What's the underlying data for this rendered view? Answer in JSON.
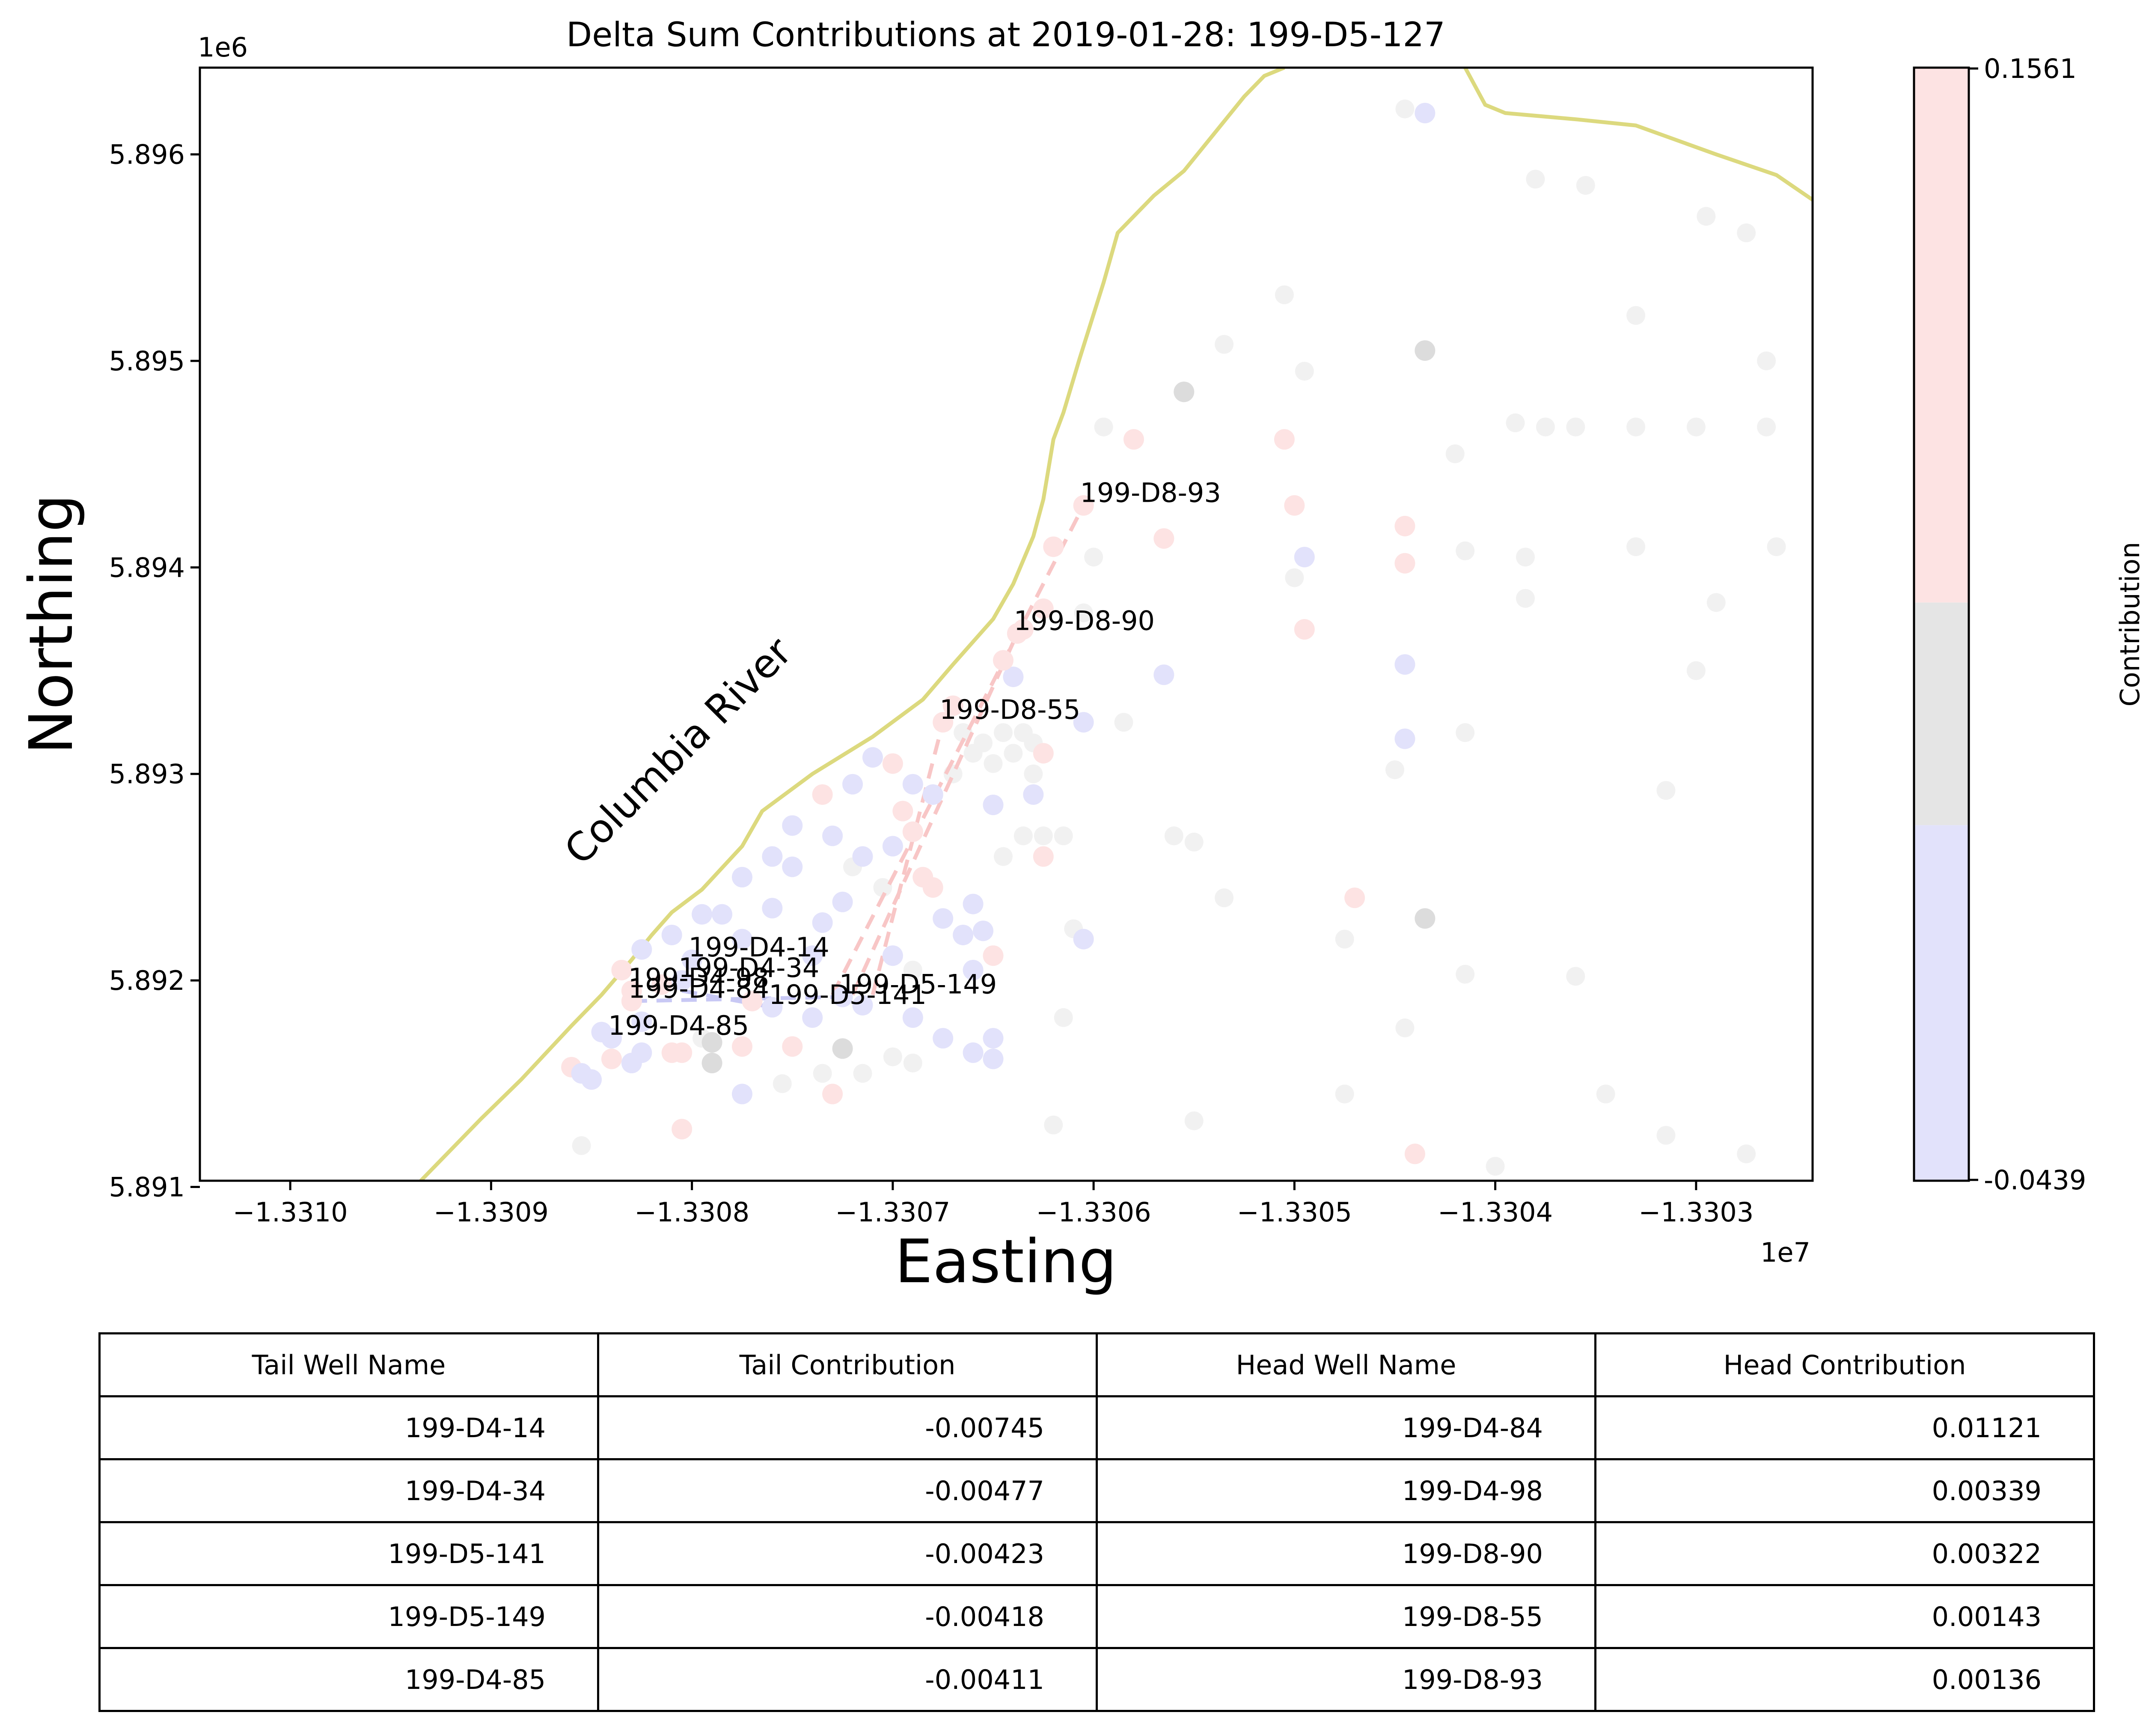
{
  "chart_data": {
    "type": "scatter",
    "title": "Delta Sum Contributions at 2019-01-28: 199-D5-127",
    "xlabel": "Easting",
    "ylabel": "Northing",
    "x_offset_text": "1e7",
    "y_offset_text": "1e6",
    "xlim": [
      -13310.45,
      -13302.42
    ],
    "ylim": [
      5891.03,
      5896.42
    ],
    "x_ticks": [
      -13310,
      -13309,
      -13308,
      -13307,
      -13306,
      -13305,
      -13304,
      -13303
    ],
    "x_tick_labels": [
      "−1.3310",
      "−1.3309",
      "−1.3308",
      "−1.3307",
      "−1.3306",
      "−1.3305",
      "−1.3304",
      "−1.3303"
    ],
    "y_ticks": [
      5891,
      5892,
      5893,
      5894,
      5895,
      5896
    ],
    "y_tick_labels": [
      "5.891",
      "5.892",
      "5.893",
      "5.894",
      "5.895",
      "5.896"
    ],
    "river_label": "Columbia River",
    "river_color": "#dcd97e",
    "river": [
      [
        -13309.35,
        5891.03
      ],
      [
        -13309.05,
        5891.33
      ],
      [
        -13308.85,
        5891.52
      ],
      [
        -13308.6,
        5891.78
      ],
      [
        -13308.45,
        5891.93
      ],
      [
        -13308.3,
        5892.1
      ],
      [
        -13308.2,
        5892.22
      ],
      [
        -13308.1,
        5892.33
      ],
      [
        -13307.95,
        5892.44
      ],
      [
        -13307.75,
        5892.65
      ],
      [
        -13307.65,
        5892.82
      ],
      [
        -13307.4,
        5893.0
      ],
      [
        -13307.1,
        5893.18
      ],
      [
        -13306.85,
        5893.36
      ],
      [
        -13306.7,
        5893.53
      ],
      [
        -13306.5,
        5893.75
      ],
      [
        -13306.4,
        5893.92
      ],
      [
        -13306.3,
        5894.15
      ],
      [
        -13306.25,
        5894.33
      ],
      [
        -13306.2,
        5894.62
      ],
      [
        -13306.15,
        5894.75
      ],
      [
        -13306.07,
        5895.01
      ],
      [
        -13305.95,
        5895.38
      ],
      [
        -13305.88,
        5895.62
      ],
      [
        -13305.7,
        5895.8
      ],
      [
        -13305.55,
        5895.92
      ],
      [
        -13305.4,
        5896.1
      ],
      [
        -13305.25,
        5896.28
      ],
      [
        -13305.15,
        5896.38
      ],
      [
        -13305.05,
        5896.42
      ]
    ],
    "river2": [
      [
        -13304.15,
        5896.42
      ],
      [
        -13304.05,
        5896.24
      ],
      [
        -13303.95,
        5896.2
      ],
      [
        -13303.6,
        5896.17
      ],
      [
        -13303.3,
        5896.14
      ],
      [
        -13302.9,
        5896.0
      ],
      [
        -13302.6,
        5895.9
      ],
      [
        -13302.42,
        5895.78
      ]
    ],
    "colorbar": {
      "label": "Contribution",
      "min": -0.0439,
      "max": 0.1561,
      "min_label": "-0.0439",
      "max_label": "0.1561",
      "colors": {
        "negative": "#e2e2fb",
        "neutral": "#e5e5e5",
        "positive": "#fde3e3"
      }
    },
    "wells": [
      {
        "name": "199-D8-93",
        "x": -13306.05,
        "y": 5894.3,
        "c": 0.0014
      },
      {
        "name": "199-D8-90",
        "x": -13306.38,
        "y": 5893.68,
        "c": 0.0032
      },
      {
        "name": "199-D8-55",
        "x": -13306.75,
        "y": 5893.25,
        "c": 0.0014
      },
      {
        "name": "199-D4-14",
        "x": -13308.0,
        "y": 5892.1,
        "c": -0.0075
      },
      {
        "name": "199-D4-34",
        "x": -13308.05,
        "y": 5892.0,
        "c": -0.0048
      },
      {
        "name": "199-D4-98",
        "x": -13308.3,
        "y": 5891.95,
        "c": 0.0034
      },
      {
        "name": "199-D4-84",
        "x": -13308.3,
        "y": 5891.9,
        "c": 0.0112
      },
      {
        "name": "199-D4-85",
        "x": -13308.4,
        "y": 5891.72,
        "c": -0.0041
      },
      {
        "name": "199-D5-141",
        "x": -13307.6,
        "y": 5891.87,
        "c": -0.0042
      },
      {
        "name": "199-D5-149",
        "x": -13307.25,
        "y": 5891.92,
        "c": -0.0042
      }
    ],
    "points": [
      [
        -13308.6,
        5891.58,
        1
      ],
      [
        -13308.5,
        5891.52,
        -1
      ],
      [
        -13308.4,
        5891.62,
        1
      ],
      [
        -13308.3,
        5891.6,
        -1
      ],
      [
        -13308.25,
        5891.8,
        -1
      ],
      [
        -13308.1,
        5891.65,
        1
      ],
      [
        -13308.05,
        5891.65,
        1
      ],
      [
        -13307.9,
        5891.7,
        0
      ],
      [
        -13307.9,
        5891.6,
        0
      ],
      [
        -13307.75,
        5891.45,
        -1
      ],
      [
        -13307.75,
        5891.68,
        1
      ],
      [
        -13307.5,
        5891.68,
        1
      ],
      [
        -13307.3,
        5891.45,
        1
      ],
      [
        -13307.25,
        5891.67,
        0
      ],
      [
        -13307.4,
        5891.82,
        -1
      ],
      [
        -13307.15,
        5891.88,
        -1
      ],
      [
        -13307.0,
        5892.12,
        -1
      ],
      [
        -13306.9,
        5891.82,
        -1
      ],
      [
        -13306.75,
        5891.72,
        -1
      ],
      [
        -13306.6,
        5891.65,
        -1
      ],
      [
        -13306.5,
        5891.72,
        -1
      ],
      [
        -13306.6,
        5892.05,
        -1
      ],
      [
        -13306.5,
        5892.12,
        1
      ],
      [
        -13306.65,
        5892.22,
        -1
      ],
      [
        -13306.75,
        5892.3,
        -1
      ],
      [
        -13306.6,
        5892.37,
        -1
      ],
      [
        -13306.8,
        5892.45,
        1
      ],
      [
        -13306.85,
        5892.5,
        1
      ],
      [
        -13306.9,
        5892.72,
        1
      ],
      [
        -13306.95,
        5892.82,
        1
      ],
      [
        -13306.9,
        5892.95,
        -1
      ],
      [
        -13306.8,
        5892.9,
        -1
      ],
      [
        -13306.5,
        5892.85,
        -1
      ],
      [
        -13306.3,
        5892.9,
        -1
      ],
      [
        -13306.25,
        5893.1,
        1
      ],
      [
        -13306.05,
        5893.25,
        -1
      ],
      [
        -13306.25,
        5892.6,
        1
      ],
      [
        -13306.05,
        5892.2,
        -1
      ],
      [
        -13307.0,
        5893.05,
        1
      ],
      [
        -13307.1,
        5893.08,
        -1
      ],
      [
        -13307.2,
        5892.95,
        -1
      ],
      [
        -13307.3,
        5892.7,
        -1
      ],
      [
        -13307.15,
        5892.6,
        -1
      ],
      [
        -13307.0,
        5892.65,
        -1
      ],
      [
        -13307.35,
        5892.9,
        1
      ],
      [
        -13307.5,
        5892.75,
        -1
      ],
      [
        -13307.6,
        5892.6,
        -1
      ],
      [
        -13307.75,
        5892.5,
        -1
      ],
      [
        -13307.6,
        5892.35,
        -1
      ],
      [
        -13307.35,
        5892.28,
        -1
      ],
      [
        -13307.25,
        5892.38,
        -1
      ],
      [
        -13307.4,
        5892.12,
        -1
      ],
      [
        -13307.75,
        5892.2,
        -1
      ],
      [
        -13307.85,
        5892.32,
        -1
      ],
      [
        -13307.95,
        5892.32,
        -1
      ],
      [
        -13308.1,
        5892.22,
        -1
      ],
      [
        -13308.25,
        5892.15,
        -1
      ],
      [
        -13308.35,
        5892.05,
        1
      ],
      [
        -13308.15,
        5891.98,
        1
      ],
      [
        -13308.45,
        5891.75,
        -1
      ],
      [
        -13308.55,
        5891.55,
        -1
      ],
      [
        -13308.25,
        5891.65,
        -1
      ],
      [
        -13307.5,
        5892.55,
        -1
      ],
      [
        -13306.7,
        5893.33,
        1
      ],
      [
        -13306.4,
        5893.47,
        -1
      ],
      [
        -13306.45,
        5893.55,
        1
      ],
      [
        -13306.35,
        5893.7,
        1
      ],
      [
        -13306.25,
        5893.8,
        1
      ],
      [
        -13306.2,
        5894.1,
        1
      ],
      [
        -13305.8,
        5894.62,
        1
      ],
      [
        -13305.65,
        5894.14,
        1
      ],
      [
        -13305.65,
        5893.48,
        -1
      ],
      [
        -13305.55,
        5894.85,
        0
      ],
      [
        -13305.05,
        5894.62,
        1
      ],
      [
        -13305.0,
        5894.3,
        1
      ],
      [
        -13304.95,
        5894.05,
        -1
      ],
      [
        -13304.95,
        5893.7,
        1
      ],
      [
        -13304.45,
        5894.2,
        1
      ],
      [
        -13304.45,
        5894.02,
        1
      ],
      [
        -13304.45,
        5893.53,
        -1
      ],
      [
        -13304.45,
        5893.17,
        -1
      ],
      [
        -13304.35,
        5895.05,
        0
      ],
      [
        -13304.35,
        5896.2,
        -1
      ],
      [
        -13304.35,
        5892.3,
        0
      ],
      [
        -13304.7,
        5892.4,
        1
      ],
      [
        -13304.4,
        5891.16,
        1
      ],
      [
        -13308.05,
        5891.28,
        1
      ],
      [
        -13307.7,
        5891.9,
        1
      ],
      [
        -13306.5,
        5891.62,
        -1
      ],
      [
        -13306.55,
        5892.24,
        -1
      ]
    ],
    "ghosts": [
      [
        -13306.3,
        5893.15
      ],
      [
        -13306.35,
        5893.2
      ],
      [
        -13306.45,
        5893.2
      ],
      [
        -13306.55,
        5893.15
      ],
      [
        -13306.6,
        5893.1
      ],
      [
        -13306.65,
        5893.2
      ],
      [
        -13306.5,
        5893.05
      ],
      [
        -13306.4,
        5893.1
      ],
      [
        -13306.3,
        5893.0
      ],
      [
        -13306.7,
        5893.0
      ],
      [
        -13306.35,
        5892.7
      ],
      [
        -13306.25,
        5892.7
      ],
      [
        -13306.15,
        5892.7
      ],
      [
        -13306.0,
        5894.05
      ],
      [
        -13306.05,
        5893.78
      ],
      [
        -13305.85,
        5893.25
      ],
      [
        -13305.5,
        5892.67
      ],
      [
        -13305.35,
        5892.4
      ],
      [
        -13305.05,
        5895.32
      ],
      [
        -13305.0,
        5893.95
      ],
      [
        -13304.95,
        5894.95
      ],
      [
        -13304.75,
        5892.2
      ],
      [
        -13304.75,
        5891.45
      ],
      [
        -13304.45,
        5891.77
      ],
      [
        -13304.45,
        5896.22
      ],
      [
        -13304.15,
        5894.08
      ],
      [
        -13304.15,
        5893.2
      ],
      [
        -13304.15,
        5892.03
      ],
      [
        -13304.0,
        5891.1
      ],
      [
        -13303.9,
        5894.7
      ],
      [
        -13303.85,
        5894.05
      ],
      [
        -13303.85,
        5893.85
      ],
      [
        -13303.8,
        5895.88
      ],
      [
        -13303.75,
        5894.68
      ],
      [
        -13303.6,
        5894.68
      ],
      [
        -13303.55,
        5895.85
      ],
      [
        -13303.3,
        5895.22
      ],
      [
        -13303.3,
        5894.68
      ],
      [
        -13303.3,
        5894.1
      ],
      [
        -13303.15,
        5892.92
      ],
      [
        -13303.15,
        5891.25
      ],
      [
        -13303.0,
        5894.68
      ],
      [
        -13303.0,
        5893.5
      ],
      [
        -13302.95,
        5895.7
      ],
      [
        -13302.9,
        5893.83
      ],
      [
        -13302.75,
        5895.62
      ],
      [
        -13302.75,
        5891.16
      ],
      [
        -13302.65,
        5894.68
      ],
      [
        -13302.65,
        5895.0
      ],
      [
        -13302.6,
        5894.1
      ],
      [
        -13305.35,
        5895.08
      ],
      [
        -13305.5,
        5891.32
      ],
      [
        -13306.2,
        5891.3
      ],
      [
        -13306.15,
        5891.82
      ],
      [
        -13306.9,
        5891.6
      ],
      [
        -13307.0,
        5891.63
      ],
      [
        -13307.15,
        5891.55
      ],
      [
        -13307.55,
        5891.5
      ],
      [
        -13307.35,
        5891.55
      ],
      [
        -13308.55,
        5891.2
      ],
      [
        -13307.95,
        5891.72
      ],
      [
        -13306.9,
        5892.05
      ],
      [
        -13307.05,
        5892.45
      ],
      [
        -13307.2,
        5892.55
      ],
      [
        -13306.45,
        5892.6
      ],
      [
        -13305.95,
        5894.68
      ],
      [
        -13306.1,
        5892.25
      ],
      [
        -13304.5,
        5893.02
      ],
      [
        -13303.45,
        5891.45
      ],
      [
        -13303.6,
        5892.02
      ],
      [
        -13305.6,
        5892.7
      ],
      [
        -13304.2,
        5894.55
      ]
    ],
    "arrows_red": [
      [
        [
          -13307.3,
          5891.93
        ],
        [
          -13306.05,
          5894.3
        ]
      ],
      [
        [
          -13307.2,
          5891.93
        ],
        [
          -13306.38,
          5893.68
        ]
      ],
      [
        [
          -13307.1,
          5891.93
        ],
        [
          -13306.75,
          5893.25
        ]
      ]
    ],
    "arrows_blue": [
      [
        [
          -13308.3,
          5891.9
        ],
        [
          -13307.25,
          5891.92
        ]
      ],
      [
        [
          -13308.05,
          5891.95
        ],
        [
          -13307.6,
          5891.87
        ]
      ]
    ]
  },
  "table": {
    "headers": [
      "Tail Well Name",
      "Tail Contribution",
      "Head Well Name",
      "Head Contribution"
    ],
    "rows": [
      [
        "199-D4-14",
        "-0.00745",
        "199-D4-84",
        "0.01121"
      ],
      [
        "199-D4-34",
        "-0.00477",
        "199-D4-98",
        "0.00339"
      ],
      [
        "199-D5-141",
        "-0.00423",
        "199-D8-90",
        "0.00322"
      ],
      [
        "199-D5-149",
        "-0.00418",
        "199-D8-55",
        "0.00143"
      ],
      [
        "199-D4-85",
        "-0.00411",
        "199-D8-93",
        "0.00136"
      ]
    ]
  }
}
